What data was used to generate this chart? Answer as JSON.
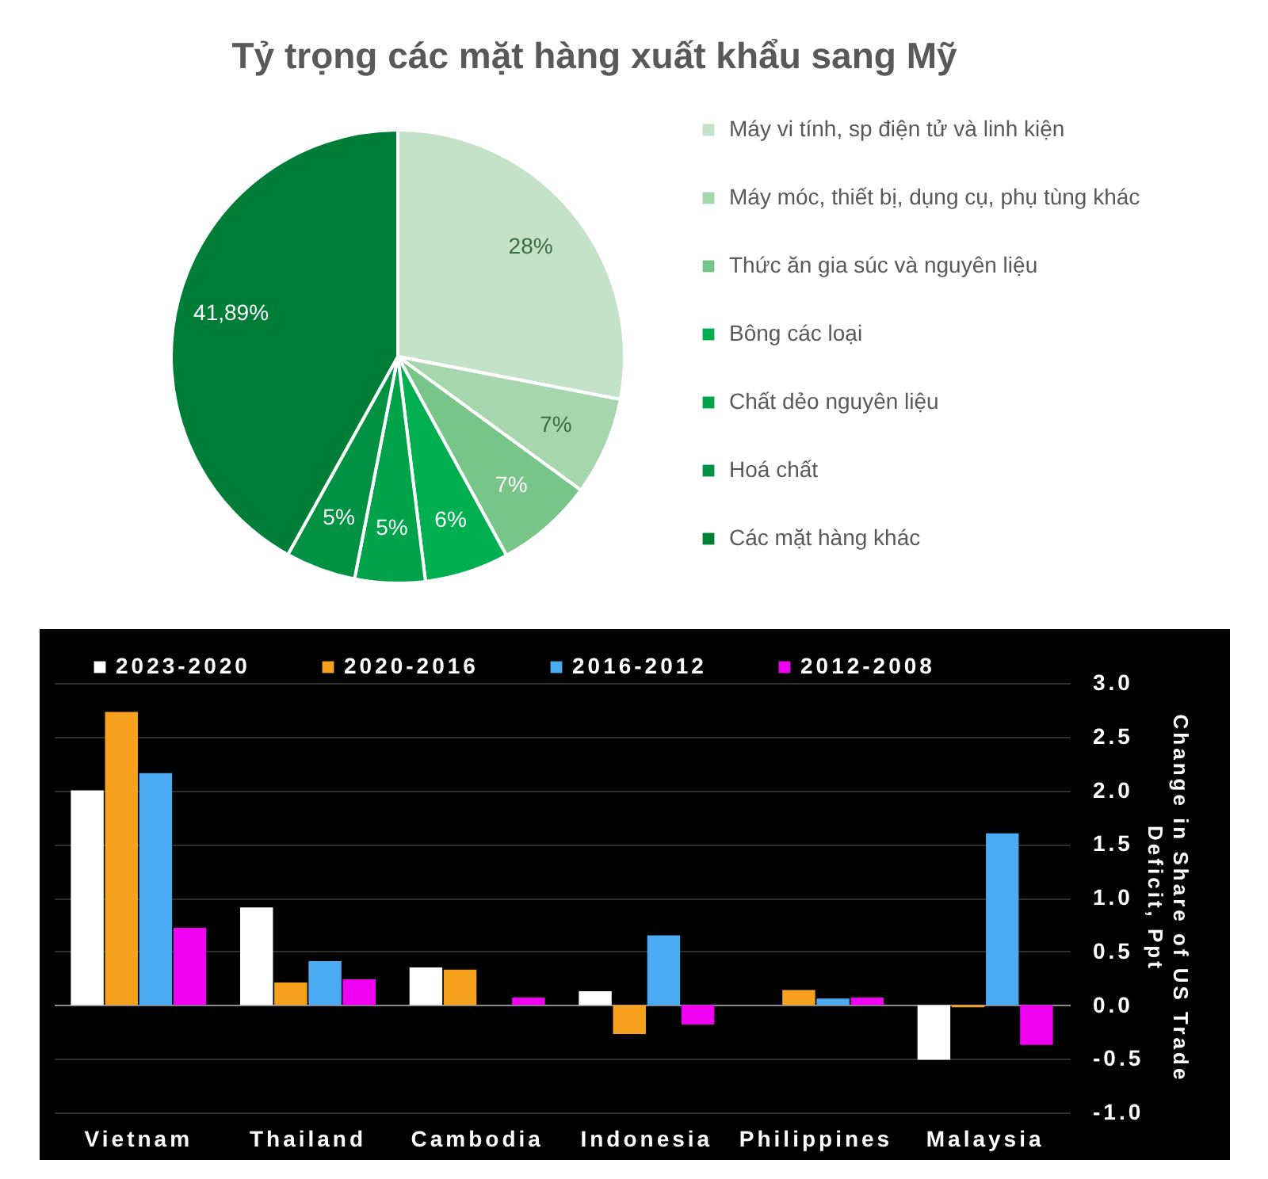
{
  "chart_data": [
    {
      "type": "pie",
      "title": "Tỷ trọng các mặt hàng xuất khẩu sang Mỹ",
      "categories": [
        "Máy vi tính, sp điện tử và linh kiện",
        "Máy móc, thiết bị, dụng cụ, phụ tùng khác",
        "Thức ăn gia súc và nguyên liệu",
        "Bông các loại",
        "Chất dẻo nguyên liệu",
        "Hoá chất",
        "Các mặt hàng khác"
      ],
      "values": [
        28,
        7,
        7,
        6,
        5,
        5,
        41.89
      ],
      "value_labels": [
        "28%",
        "7%",
        "7%",
        "6%",
        "5%",
        "5%",
        "41,89%"
      ],
      "colors": [
        "#c4e2c8",
        "#a6d6ae",
        "#78c58a",
        "#00b050",
        "#00a24a",
        "#009142",
        "#007d36"
      ],
      "legend": "right"
    },
    {
      "type": "bar",
      "categories": [
        "Vietnam",
        "Thailand",
        "Cambodia",
        "Indonesia",
        "Philippines",
        "Malaysia"
      ],
      "series": [
        {
          "name": "2023-2020",
          "color": "#ffffff",
          "values": [
            2.0,
            0.91,
            0.35,
            0.13,
            null,
            -0.51
          ]
        },
        {
          "name": "2020-2016",
          "color": "#f7a21e",
          "values": [
            2.73,
            0.21,
            0.33,
            -0.27,
            0.14,
            -0.02
          ]
        },
        {
          "name": "2016-2012",
          "color": "#4aabf2",
          "values": [
            2.16,
            0.41,
            null,
            0.65,
            0.06,
            1.6
          ]
        },
        {
          "name": "2012-2008",
          "color": "#f000f0",
          "values": [
            0.72,
            0.24,
            0.07,
            -0.18,
            0.07,
            -0.37
          ]
        }
      ],
      "ylabel": "Change in Share of US Trade Deficit, Ppt",
      "ylim": [
        -1,
        3
      ],
      "yticks": [
        {
          "value": -1,
          "label": "-1.0"
        },
        {
          "value": -0.5,
          "label": "-0.5"
        },
        {
          "value": 0,
          "label": "0.0"
        },
        {
          "value": 0.5,
          "label": "0.5"
        },
        {
          "value": 1,
          "label": "1.0"
        },
        {
          "value": 1.5,
          "label": "1.5"
        },
        {
          "value": 2,
          "label": "2.0"
        },
        {
          "value": 2.5,
          "label": "2.5"
        },
        {
          "value": 3,
          "label": "3.0"
        }
      ],
      "grid": "y",
      "legend": "top"
    }
  ]
}
